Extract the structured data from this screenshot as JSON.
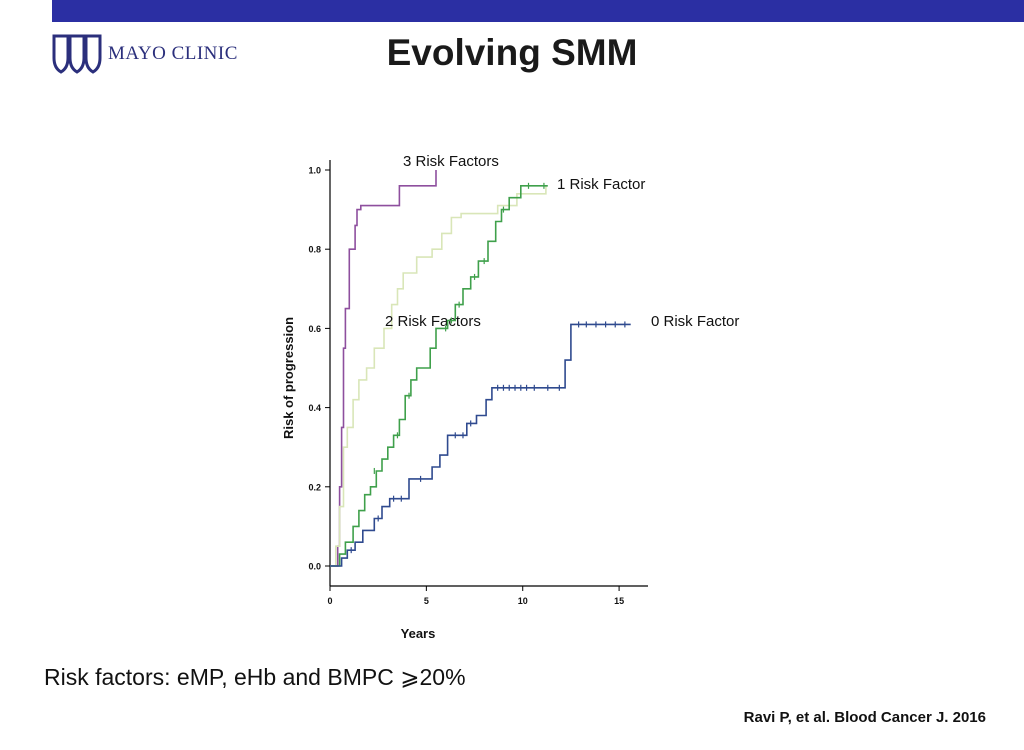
{
  "header": {
    "logo_text": "MAYO CLINIC",
    "title": "Evolving SMM",
    "bar_color": "#2b2fa3"
  },
  "footer": {
    "risk_note": "Risk factors: eMP, eHb and BMPC ⩾20%",
    "citation": "Ravi P, et al. Blood Cancer J. 2016"
  },
  "chart_data": {
    "type": "line",
    "title": "",
    "xlabel": "Years",
    "ylabel": "Risk of progression",
    "xlim": [
      0,
      16.5
    ],
    "ylim": [
      0,
      1.0
    ],
    "x_ticks": [
      "0",
      "5",
      "10",
      "15"
    ],
    "y_ticks": [
      "0.0",
      "0.2",
      "0.4",
      "0.6",
      "0.8",
      "1.0"
    ],
    "grid": false,
    "series": [
      {
        "name": "3 Risk Factors",
        "color": "#8e4f9e",
        "points": [
          [
            0,
            0
          ],
          [
            0.4,
            0
          ],
          [
            0.4,
            0.05
          ],
          [
            0.5,
            0.05
          ],
          [
            0.5,
            0.2
          ],
          [
            0.6,
            0.2
          ],
          [
            0.6,
            0.35
          ],
          [
            0.7,
            0.35
          ],
          [
            0.7,
            0.55
          ],
          [
            0.8,
            0.55
          ],
          [
            0.8,
            0.65
          ],
          [
            1.0,
            0.65
          ],
          [
            1.0,
            0.8
          ],
          [
            1.3,
            0.8
          ],
          [
            1.3,
            0.86
          ],
          [
            1.4,
            0.86
          ],
          [
            1.4,
            0.9
          ],
          [
            1.6,
            0.9
          ],
          [
            1.6,
            0.91
          ],
          [
            3.6,
            0.91
          ],
          [
            3.6,
            0.96
          ],
          [
            5.5,
            0.96
          ],
          [
            5.5,
            1.0
          ]
        ],
        "censors": []
      },
      {
        "name": "2 Risk Factors",
        "color": "#d9e6b8",
        "points": [
          [
            0,
            0
          ],
          [
            0.3,
            0
          ],
          [
            0.3,
            0.05
          ],
          [
            0.5,
            0.05
          ],
          [
            0.5,
            0.15
          ],
          [
            0.7,
            0.15
          ],
          [
            0.7,
            0.3
          ],
          [
            0.9,
            0.3
          ],
          [
            0.9,
            0.35
          ],
          [
            1.2,
            0.35
          ],
          [
            1.2,
            0.42
          ],
          [
            1.5,
            0.42
          ],
          [
            1.5,
            0.47
          ],
          [
            1.9,
            0.47
          ],
          [
            1.9,
            0.5
          ],
          [
            2.3,
            0.5
          ],
          [
            2.3,
            0.55
          ],
          [
            2.8,
            0.55
          ],
          [
            2.8,
            0.6
          ],
          [
            3.2,
            0.6
          ],
          [
            3.2,
            0.66
          ],
          [
            3.5,
            0.66
          ],
          [
            3.5,
            0.7
          ],
          [
            3.8,
            0.7
          ],
          [
            3.8,
            0.74
          ],
          [
            4.5,
            0.74
          ],
          [
            4.5,
            0.78
          ],
          [
            5.3,
            0.78
          ],
          [
            5.3,
            0.8
          ],
          [
            5.8,
            0.8
          ],
          [
            5.8,
            0.84
          ],
          [
            6.3,
            0.84
          ],
          [
            6.3,
            0.88
          ],
          [
            6.8,
            0.88
          ],
          [
            6.8,
            0.89
          ],
          [
            8.7,
            0.89
          ],
          [
            8.7,
            0.91
          ],
          [
            9.7,
            0.91
          ],
          [
            9.7,
            0.94
          ],
          [
            11.2,
            0.94
          ],
          [
            11.2,
            0.96
          ]
        ],
        "censors": []
      },
      {
        "name": "1 Risk Factor",
        "color": "#3fa04b",
        "points": [
          [
            0,
            0
          ],
          [
            0.5,
            0
          ],
          [
            0.5,
            0.03
          ],
          [
            0.8,
            0.03
          ],
          [
            0.8,
            0.06
          ],
          [
            1.2,
            0.06
          ],
          [
            1.2,
            0.1
          ],
          [
            1.5,
            0.1
          ],
          [
            1.5,
            0.14
          ],
          [
            1.8,
            0.14
          ],
          [
            1.8,
            0.18
          ],
          [
            2.1,
            0.18
          ],
          [
            2.1,
            0.2
          ],
          [
            2.4,
            0.2
          ],
          [
            2.4,
            0.24
          ],
          [
            2.7,
            0.24
          ],
          [
            2.7,
            0.27
          ],
          [
            3.0,
            0.27
          ],
          [
            3.0,
            0.3
          ],
          [
            3.3,
            0.3
          ],
          [
            3.3,
            0.33
          ],
          [
            3.6,
            0.33
          ],
          [
            3.6,
            0.37
          ],
          [
            3.9,
            0.37
          ],
          [
            3.9,
            0.43
          ],
          [
            4.2,
            0.43
          ],
          [
            4.2,
            0.47
          ],
          [
            4.5,
            0.47
          ],
          [
            4.5,
            0.5
          ],
          [
            5.2,
            0.5
          ],
          [
            5.2,
            0.55
          ],
          [
            5.5,
            0.55
          ],
          [
            5.5,
            0.6
          ],
          [
            6.1,
            0.6
          ],
          [
            6.1,
            0.62
          ],
          [
            6.5,
            0.62
          ],
          [
            6.5,
            0.66
          ],
          [
            6.9,
            0.66
          ],
          [
            6.9,
            0.7
          ],
          [
            7.3,
            0.7
          ],
          [
            7.3,
            0.73
          ],
          [
            7.7,
            0.73
          ],
          [
            7.7,
            0.77
          ],
          [
            8.2,
            0.77
          ],
          [
            8.2,
            0.82
          ],
          [
            8.6,
            0.82
          ],
          [
            8.6,
            0.87
          ],
          [
            8.9,
            0.87
          ],
          [
            8.9,
            0.9
          ],
          [
            9.3,
            0.9
          ],
          [
            9.3,
            0.93
          ],
          [
            9.9,
            0.93
          ],
          [
            9.9,
            0.96
          ],
          [
            11.3,
            0.96
          ]
        ],
        "censors": [
          [
            2.3,
            0.24
          ],
          [
            3.5,
            0.33
          ],
          [
            4.1,
            0.43
          ],
          [
            6.0,
            0.6
          ],
          [
            6.3,
            0.62
          ],
          [
            6.7,
            0.66
          ],
          [
            7.5,
            0.73
          ],
          [
            8.0,
            0.77
          ],
          [
            9.0,
            0.9
          ],
          [
            10.3,
            0.96
          ],
          [
            11.1,
            0.96
          ]
        ]
      },
      {
        "name": "0 Risk Factor",
        "color": "#2f4a8f",
        "points": [
          [
            0,
            0
          ],
          [
            0.6,
            0
          ],
          [
            0.6,
            0.02
          ],
          [
            0.9,
            0.02
          ],
          [
            0.9,
            0.04
          ],
          [
            1.3,
            0.04
          ],
          [
            1.3,
            0.06
          ],
          [
            1.7,
            0.06
          ],
          [
            1.7,
            0.09
          ],
          [
            2.3,
            0.09
          ],
          [
            2.3,
            0.12
          ],
          [
            2.7,
            0.12
          ],
          [
            2.7,
            0.15
          ],
          [
            3.1,
            0.15
          ],
          [
            3.1,
            0.17
          ],
          [
            4.1,
            0.17
          ],
          [
            4.1,
            0.22
          ],
          [
            5.3,
            0.22
          ],
          [
            5.3,
            0.25
          ],
          [
            5.7,
            0.25
          ],
          [
            5.7,
            0.28
          ],
          [
            6.1,
            0.28
          ],
          [
            6.1,
            0.33
          ],
          [
            7.1,
            0.33
          ],
          [
            7.1,
            0.36
          ],
          [
            7.6,
            0.36
          ],
          [
            7.6,
            0.38
          ],
          [
            8.1,
            0.38
          ],
          [
            8.1,
            0.42
          ],
          [
            8.4,
            0.42
          ],
          [
            8.4,
            0.45
          ],
          [
            12.2,
            0.45
          ],
          [
            12.2,
            0.52
          ],
          [
            12.5,
            0.52
          ],
          [
            12.5,
            0.61
          ],
          [
            15.6,
            0.61
          ]
        ],
        "censors": [
          [
            1.1,
            0.04
          ],
          [
            2.5,
            0.12
          ],
          [
            3.3,
            0.17
          ],
          [
            3.7,
            0.17
          ],
          [
            4.7,
            0.22
          ],
          [
            6.5,
            0.33
          ],
          [
            6.9,
            0.33
          ],
          [
            7.3,
            0.36
          ],
          [
            8.7,
            0.45
          ],
          [
            9.0,
            0.45
          ],
          [
            9.3,
            0.45
          ],
          [
            9.6,
            0.45
          ],
          [
            9.9,
            0.45
          ],
          [
            10.2,
            0.45
          ],
          [
            10.6,
            0.45
          ],
          [
            11.3,
            0.45
          ],
          [
            11.9,
            0.45
          ],
          [
            12.9,
            0.61
          ],
          [
            13.3,
            0.61
          ],
          [
            13.8,
            0.61
          ],
          [
            14.3,
            0.61
          ],
          [
            14.8,
            0.61
          ],
          [
            15.3,
            0.61
          ]
        ]
      }
    ]
  }
}
